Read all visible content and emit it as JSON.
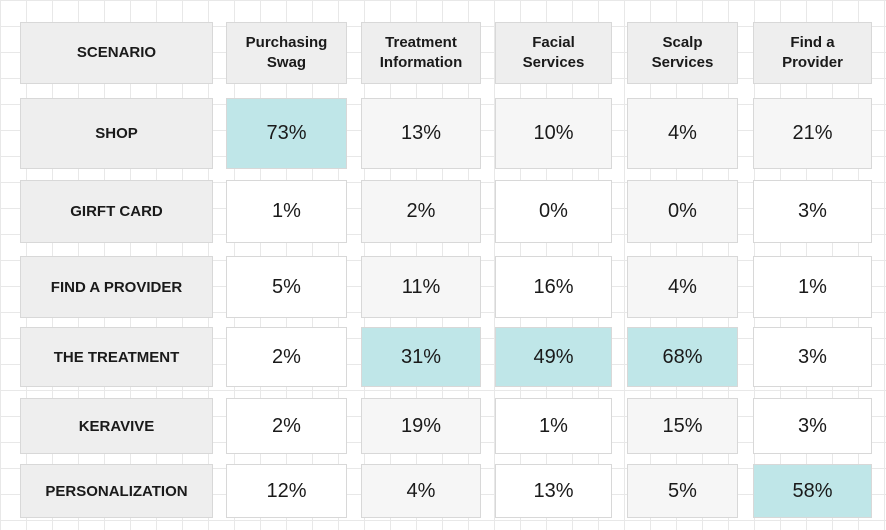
{
  "table": {
    "header": {
      "scenario": "SCENARIO",
      "columns": [
        "Purchasing\nSwag",
        "Treatment\nInformation",
        "Facial\nServices",
        "Scalp\nServices",
        "Find a\nProvider"
      ]
    },
    "rows": [
      {
        "label": "SHOP",
        "values": [
          "73%",
          "13%",
          "10%",
          "4%",
          "21%"
        ],
        "highlight": [
          true,
          false,
          false,
          false,
          false
        ]
      },
      {
        "label": "GIRFT CARD",
        "values": [
          "1%",
          "2%",
          "0%",
          "0%",
          "3%"
        ],
        "highlight": [
          false,
          false,
          false,
          false,
          false
        ]
      },
      {
        "label": "FIND A PROVIDER",
        "values": [
          "5%",
          "11%",
          "16%",
          "4%",
          "1%"
        ],
        "highlight": [
          false,
          false,
          false,
          false,
          false
        ]
      },
      {
        "label": "THE TREATMENT",
        "values": [
          "2%",
          "31%",
          "49%",
          "68%",
          "3%"
        ],
        "highlight": [
          false,
          true,
          true,
          true,
          false
        ]
      },
      {
        "label": "KERAVIVE",
        "values": [
          "2%",
          "19%",
          "1%",
          "15%",
          "3%"
        ],
        "highlight": [
          false,
          false,
          false,
          false,
          false
        ]
      },
      {
        "label": "PERSONALIZATION",
        "values": [
          "12%",
          "4%",
          "13%",
          "5%",
          "58%"
        ],
        "highlight": [
          false,
          false,
          false,
          false,
          true
        ]
      }
    ],
    "colors": {
      "highlight": "#bfe6e8",
      "header_bg": "#eeeeee",
      "cell_bg": "#f6f6f6"
    }
  }
}
